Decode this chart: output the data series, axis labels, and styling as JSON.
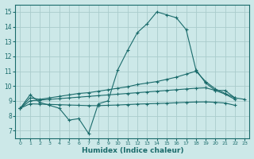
{
  "xlabel": "Humidex (Indice chaleur)",
  "background_color": "#cce8e8",
  "grid_color": "#aacccc",
  "line_color": "#1a6b6b",
  "xlim": [
    -0.5,
    23.5
  ],
  "ylim": [
    6.5,
    15.5
  ],
  "yticks": [
    7,
    8,
    9,
    10,
    11,
    12,
    13,
    14,
    15
  ],
  "xticks": [
    0,
    1,
    2,
    3,
    4,
    5,
    6,
    7,
    8,
    9,
    10,
    11,
    12,
    13,
    14,
    15,
    16,
    17,
    18,
    19,
    20,
    21,
    22,
    23
  ],
  "hours": [
    0,
    1,
    2,
    3,
    4,
    5,
    6,
    7,
    8,
    9,
    10,
    11,
    12,
    13,
    14,
    15,
    16,
    17,
    18,
    19,
    20,
    21,
    22,
    23
  ],
  "line1": [
    8.5,
    9.4,
    8.9,
    8.7,
    8.5,
    7.7,
    7.8,
    6.8,
    8.8,
    9.0,
    11.1,
    12.4,
    13.6,
    14.2,
    15.0,
    14.8,
    14.6,
    13.8,
    11.1,
    10.2,
    9.7,
    9.7,
    9.2,
    9.1
  ],
  "line2": [
    8.5,
    9.2,
    9.1,
    9.2,
    9.3,
    9.4,
    9.5,
    9.55,
    9.65,
    9.75,
    9.85,
    9.95,
    10.1,
    10.2,
    10.3,
    10.45,
    10.6,
    10.8,
    11.0,
    10.3,
    9.8,
    9.5,
    9.2,
    null
  ],
  "line3": [
    8.5,
    9.0,
    9.05,
    9.1,
    9.15,
    9.2,
    9.25,
    9.3,
    9.35,
    9.4,
    9.45,
    9.5,
    9.55,
    9.6,
    9.65,
    9.7,
    9.75,
    9.8,
    9.85,
    9.88,
    9.7,
    9.45,
    9.1,
    null
  ],
  "line4": [
    8.5,
    8.8,
    8.78,
    8.76,
    8.74,
    8.72,
    8.7,
    8.68,
    8.68,
    8.7,
    8.72,
    8.75,
    8.78,
    8.8,
    8.82,
    8.84,
    8.87,
    8.9,
    8.92,
    8.93,
    8.9,
    8.85,
    8.7,
    null
  ]
}
